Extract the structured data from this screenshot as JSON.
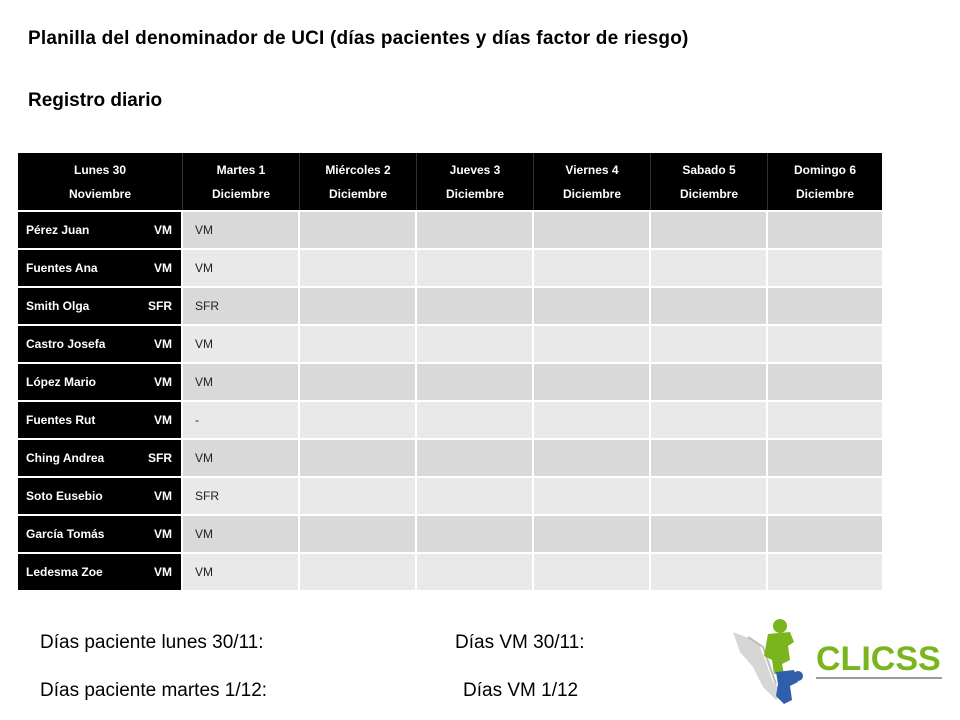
{
  "title": "Planilla del denominador de UCI (días pacientes y días factor de riesgo)",
  "subtitle": "Registro diario",
  "table": {
    "headers": [
      {
        "line1": "Lunes 30",
        "line2": "Noviembre"
      },
      {
        "line1": "Martes 1",
        "line2": "Diciembre"
      },
      {
        "line1": "Miércoles 2",
        "line2": "Diciembre"
      },
      {
        "line1": "Jueves 3",
        "line2": "Diciembre"
      },
      {
        "line1": "Viernes 4",
        "line2": "Diciembre"
      },
      {
        "line1": "Sabado 5",
        "line2": "Diciembre"
      },
      {
        "line1": "Domingo 6",
        "line2": "Diciembre"
      }
    ],
    "rows": [
      {
        "name": "Pérez Juan",
        "code": "VM",
        "tue": "VM"
      },
      {
        "name": "Fuentes Ana",
        "code": "VM",
        "tue": "VM"
      },
      {
        "name": "Smith Olga",
        "code": "SFR",
        "tue": "SFR"
      },
      {
        "name": "Castro Josefa",
        "code": "VM",
        "tue": "VM"
      },
      {
        "name": "López Mario",
        "code": "VM",
        "tue": "VM"
      },
      {
        "name": "Fuentes  Rut",
        "code": "VM",
        "tue": "-"
      },
      {
        "name": "Ching Andrea",
        "code": "SFR",
        "tue": "VM"
      },
      {
        "name": "Soto Eusebio",
        "code": "VM",
        "tue": "SFR"
      },
      {
        "name": "García Tomás",
        "code": "VM",
        "tue": "VM"
      },
      {
        "name": "Ledesma Zoe",
        "code": "VM",
        "tue": "VM"
      }
    ]
  },
  "footer": {
    "dias_paciente_lunes": "Días paciente lunes 30/11:",
    "dias_vm_30": "Días VM 30/11:",
    "dias_paciente_martes": "Días paciente martes 1/12:",
    "dias_vm_1": "Días VM 1/12"
  },
  "logo": {
    "text": "CLICSS",
    "icon": "puzzle-figure-icon",
    "colors": {
      "green": "#7ab51d",
      "blue": "#2f5fa8",
      "gray": "#9a9a9a"
    }
  }
}
